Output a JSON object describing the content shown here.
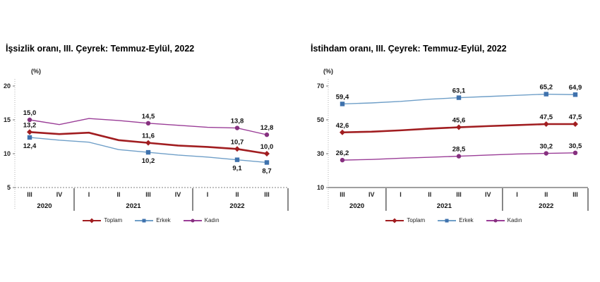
{
  "chart_data": [
    {
      "type": "line",
      "title": "İşsizlik oranı, III. Çeyrek: Temmuz-Eylül, 2022",
      "unit_label": "(%)",
      "x_quarters": [
        "III",
        "IV",
        "I",
        "II",
        "III",
        "IV",
        "I",
        "II",
        "III"
      ],
      "year_groups": [
        {
          "label": "2020",
          "count": 2
        },
        {
          "label": "2021",
          "count": 4
        },
        {
          "label": "2022",
          "count": 3
        }
      ],
      "ylim": [
        5,
        20
      ],
      "yticks": [
        20,
        15,
        10,
        5
      ],
      "grid": false,
      "legend_position": "bottom",
      "decimal_separator": ",",
      "labeled_indices": [
        0,
        4,
        7,
        8
      ],
      "series": [
        {
          "name": "Toplam",
          "color": "#a11d20",
          "marker": "diamond",
          "emphasis": true,
          "label_position": "above",
          "values": [
            13.2,
            12.9,
            13.1,
            12.0,
            11.6,
            11.2,
            11.0,
            10.7,
            10.0
          ],
          "labeled_values": [
            "13,2",
            "11,6",
            "10,7",
            "10,0"
          ]
        },
        {
          "name": "Erkek",
          "color": "#6f9fc8",
          "marker_color": "#3f72ad",
          "marker": "square",
          "emphasis": false,
          "label_position": "below",
          "values": [
            12.4,
            12.0,
            11.7,
            10.6,
            10.2,
            9.8,
            9.5,
            9.1,
            8.7
          ],
          "labeled_values": [
            "12,4",
            "10,2",
            "9,1",
            "8,7"
          ]
        },
        {
          "name": "Kadın",
          "color": "#9a3d97",
          "marker_color": "#86307f",
          "marker": "circle",
          "emphasis": false,
          "label_position": "above",
          "values": [
            15.0,
            14.3,
            15.2,
            14.9,
            14.5,
            14.2,
            13.9,
            13.8,
            12.8
          ],
          "labeled_values": [
            "15,0",
            "14,5",
            "13,8",
            "12,8"
          ]
        }
      ]
    },
    {
      "type": "line",
      "title": "İstihdam oranı, III. Çeyrek: Temmuz-Eylül, 2022",
      "unit_label": "(%)",
      "x_quarters": [
        "III",
        "IV",
        "I",
        "II",
        "III",
        "IV",
        "I",
        "II",
        "III"
      ],
      "year_groups": [
        {
          "label": "2020",
          "count": 2
        },
        {
          "label": "2021",
          "count": 4
        },
        {
          "label": "2022",
          "count": 3
        }
      ],
      "ylim": [
        10,
        70
      ],
      "yticks": [
        70,
        50,
        30,
        10
      ],
      "grid": false,
      "legend_position": "bottom",
      "decimal_separator": ",",
      "labeled_indices": [
        0,
        4,
        7,
        8
      ],
      "series": [
        {
          "name": "Toplam",
          "color": "#a11d20",
          "marker": "diamond",
          "emphasis": true,
          "label_position": "above",
          "values": [
            42.6,
            43.0,
            43.8,
            44.8,
            45.6,
            46.3,
            46.9,
            47.5,
            47.5
          ],
          "labeled_values": [
            "42,6",
            "45,6",
            "47,5",
            "47,5"
          ]
        },
        {
          "name": "Erkek",
          "color": "#6f9fc8",
          "marker_color": "#3f72ad",
          "marker": "square",
          "emphasis": false,
          "label_position": "above",
          "values": [
            59.4,
            60.0,
            60.9,
            62.2,
            63.1,
            63.8,
            64.5,
            65.2,
            64.9
          ],
          "labeled_values": [
            "59,4",
            "63,1",
            "65,2",
            "64,9"
          ]
        },
        {
          "name": "Kadın",
          "color": "#9a3d97",
          "marker_color": "#86307f",
          "marker": "circle",
          "emphasis": false,
          "label_position": "above",
          "values": [
            26.2,
            26.6,
            27.3,
            27.9,
            28.5,
            29.2,
            29.8,
            30.2,
            30.5
          ],
          "labeled_values": [
            "26,2",
            "28,5",
            "30,2",
            "30,5"
          ]
        }
      ]
    }
  ]
}
